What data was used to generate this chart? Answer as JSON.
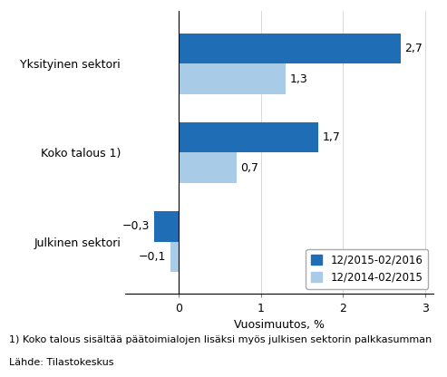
{
  "categories": [
    "Julkinen sektori",
    "Koko talous 1)",
    "Yksityinen sektori"
  ],
  "series_2016": [
    -0.3,
    1.7,
    2.7
  ],
  "series_2015": [
    -0.1,
    0.7,
    1.3
  ],
  "color_2016": "#1F6EB5",
  "color_2015": "#A8CCE8",
  "xlabel": "Vuosimuutos, %",
  "legend_2016": "12/2015-02/2016",
  "legend_2015": "12/2014-02/2015",
  "xlim": [
    -0.65,
    3.1
  ],
  "footnote1": "1) Koko talous sisältää päätoimialojen lisäksi myös julkisen sektorin palkkasumman",
  "footnote2": "Lähde: Tilastokeskus",
  "bar_height": 0.38,
  "label_fontsize": 9,
  "tick_fontsize": 9,
  "xlabel_fontsize": 9,
  "footnote_fontsize": 8,
  "legend_fontsize": 8.5
}
